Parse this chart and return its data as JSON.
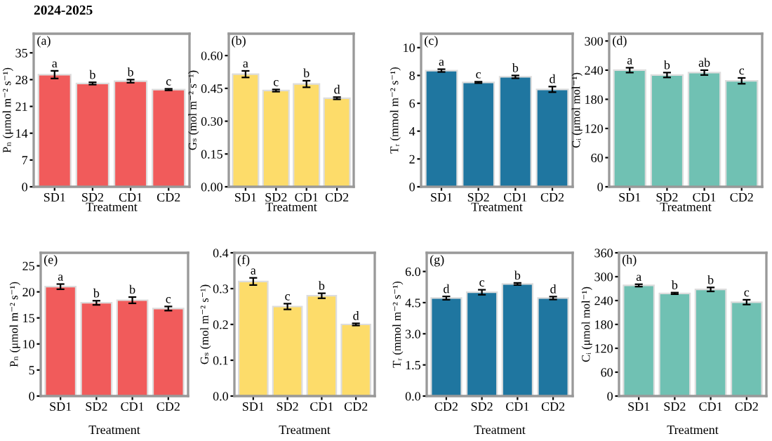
{
  "chart_data": [
    {
      "type": "bar",
      "title": "2024-2025",
      "annotations": [
        "(a)"
      ],
      "xlabel": "Treatment",
      "ylabel": "Pₙ (μmol m⁻² s⁻¹)",
      "categories": [
        "SD1",
        "SD2",
        "CD1",
        "CD2"
      ],
      "values": [
        29.3,
        27.0,
        27.6,
        25.4
      ],
      "errors": [
        1.0,
        0.3,
        0.4,
        0.2
      ],
      "value_labels": [
        "a",
        "b",
        "b",
        "c"
      ],
      "color": "#f15b5b",
      "ylim": [
        0,
        40
      ],
      "yticks": [
        0,
        7,
        14,
        21,
        28,
        35
      ],
      "grid": false
    },
    {
      "type": "bar",
      "annotations": [
        "(b)"
      ],
      "xlabel": "Treatment",
      "ylabel": "Gₛ (mol m⁻² s⁻¹)",
      "categories": [
        "SD1",
        "SD2",
        "CD1",
        "CD2"
      ],
      "values": [
        0.515,
        0.44,
        0.47,
        0.405
      ],
      "errors": [
        0.015,
        0.005,
        0.015,
        0.005
      ],
      "value_labels": [
        "a",
        "c",
        "b",
        "d"
      ],
      "color": "#fddc6a",
      "ylim": [
        0,
        0.7
      ],
      "yticks": [
        {
          "value": 0,
          "label": "0.00"
        },
        {
          "value": 0.15,
          "label": "0.15"
        },
        {
          "value": 0.3,
          "label": "0.30"
        },
        {
          "value": 0.45,
          "label": "0.45"
        },
        {
          "value": 0.6,
          "label": "0.60"
        }
      ],
      "grid": false
    },
    {
      "type": "bar",
      "annotations": [
        "(c)"
      ],
      "xlabel": "Treatment",
      "ylabel": "Tᵣ (mmol m⁻² s⁻¹)",
      "categories": [
        "SD1",
        "SD2",
        "CD1",
        "CD2"
      ],
      "values": [
        8.35,
        7.5,
        7.9,
        7.0
      ],
      "errors": [
        0.1,
        0.05,
        0.1,
        0.2
      ],
      "value_labels": [
        "a",
        "c",
        "b",
        "d"
      ],
      "color": "#1f76a0",
      "ylim": [
        0,
        11
      ],
      "yticks": [
        0,
        2,
        4,
        6,
        8,
        10
      ],
      "grid": false
    },
    {
      "type": "bar",
      "annotations": [
        "(d)"
      ],
      "xlabel": "Treatment",
      "ylabel": "Cᵢ (μmol mol⁻¹)",
      "categories": [
        "SD1",
        "SD2",
        "CD1",
        "CD2"
      ],
      "values": [
        240,
        230,
        235,
        218
      ],
      "errors": [
        5,
        5,
        5,
        6
      ],
      "value_labels": [
        "a",
        "b",
        "ab",
        "c"
      ],
      "color": "#70c1b3",
      "ylim": [
        0,
        315
      ],
      "yticks": [
        0,
        60,
        120,
        180,
        240,
        300
      ],
      "grid": false
    },
    {
      "type": "bar",
      "annotations": [
        "(e)"
      ],
      "xlabel": "Treatment",
      "ylabel": "Pₙ (μmol m⁻² s⁻¹)",
      "categories": [
        "SD1",
        "SD2",
        "CD1",
        "CD2"
      ],
      "values": [
        21.0,
        17.9,
        18.4,
        16.8
      ],
      "errors": [
        0.5,
        0.4,
        0.6,
        0.4
      ],
      "value_labels": [
        "a",
        "b",
        "b",
        "c"
      ],
      "color": "#f15b5b",
      "ylim": [
        0,
        27.5
      ],
      "yticks": [
        0,
        5,
        10,
        15,
        20,
        25
      ],
      "grid": false
    },
    {
      "type": "bar",
      "annotations": [
        "(f)"
      ],
      "xlabel": "Treatment",
      "ylabel": "Gₛ (mol m⁻² s⁻¹)",
      "categories": [
        "SD1",
        "SD2",
        "CD1",
        "CD2"
      ],
      "values": [
        0.32,
        0.25,
        0.28,
        0.2
      ],
      "errors": [
        0.01,
        0.008,
        0.007,
        0.003
      ],
      "value_labels": [
        "a",
        "c",
        "b",
        "d"
      ],
      "color": "#fddc6a",
      "ylim": [
        0,
        0.4
      ],
      "yticks": [
        {
          "value": 0,
          "label": "0.0"
        },
        0.1,
        0.2,
        0.3,
        0.4
      ],
      "grid": false
    },
    {
      "type": "bar",
      "annotations": [
        "(g)"
      ],
      "xlabel": "Treatment",
      "ylabel": "Tᵣ (mmol m⁻² s⁻¹)",
      "categories": [
        "CD2",
        "SD2",
        "CD1",
        "CD2"
      ],
      "values": [
        4.72,
        5.0,
        5.4,
        4.72
      ],
      "errors": [
        0.08,
        0.12,
        0.05,
        0.07
      ],
      "value_labels": [
        "d",
        "c",
        "b",
        "d"
      ],
      "color": "#1f76a0",
      "ylim": [
        0,
        6.9
      ],
      "yticks": [
        {
          "value": 0,
          "label": "0.0"
        },
        1.5,
        {
          "value": 3,
          "label": "3.0"
        },
        4.5,
        {
          "value": 6,
          "label": "6.0"
        }
      ],
      "grid": false
    },
    {
      "type": "bar",
      "annotations": [
        "(h)"
      ],
      "xlabel": "Treatment",
      "ylabel": "Cᵢ (μmol mol⁻¹)",
      "categories": [
        "SD1",
        "SD2",
        "CD1",
        "CD2"
      ],
      "values": [
        278,
        258,
        268,
        236
      ],
      "errors": [
        3,
        2,
        5,
        6
      ],
      "value_labels": [
        "a",
        "b",
        "b",
        "c"
      ],
      "color": "#70c1b3",
      "ylim": [
        0,
        360
      ],
      "yticks": [
        0,
        60,
        120,
        180,
        240,
        300,
        360
      ],
      "grid": false
    }
  ]
}
